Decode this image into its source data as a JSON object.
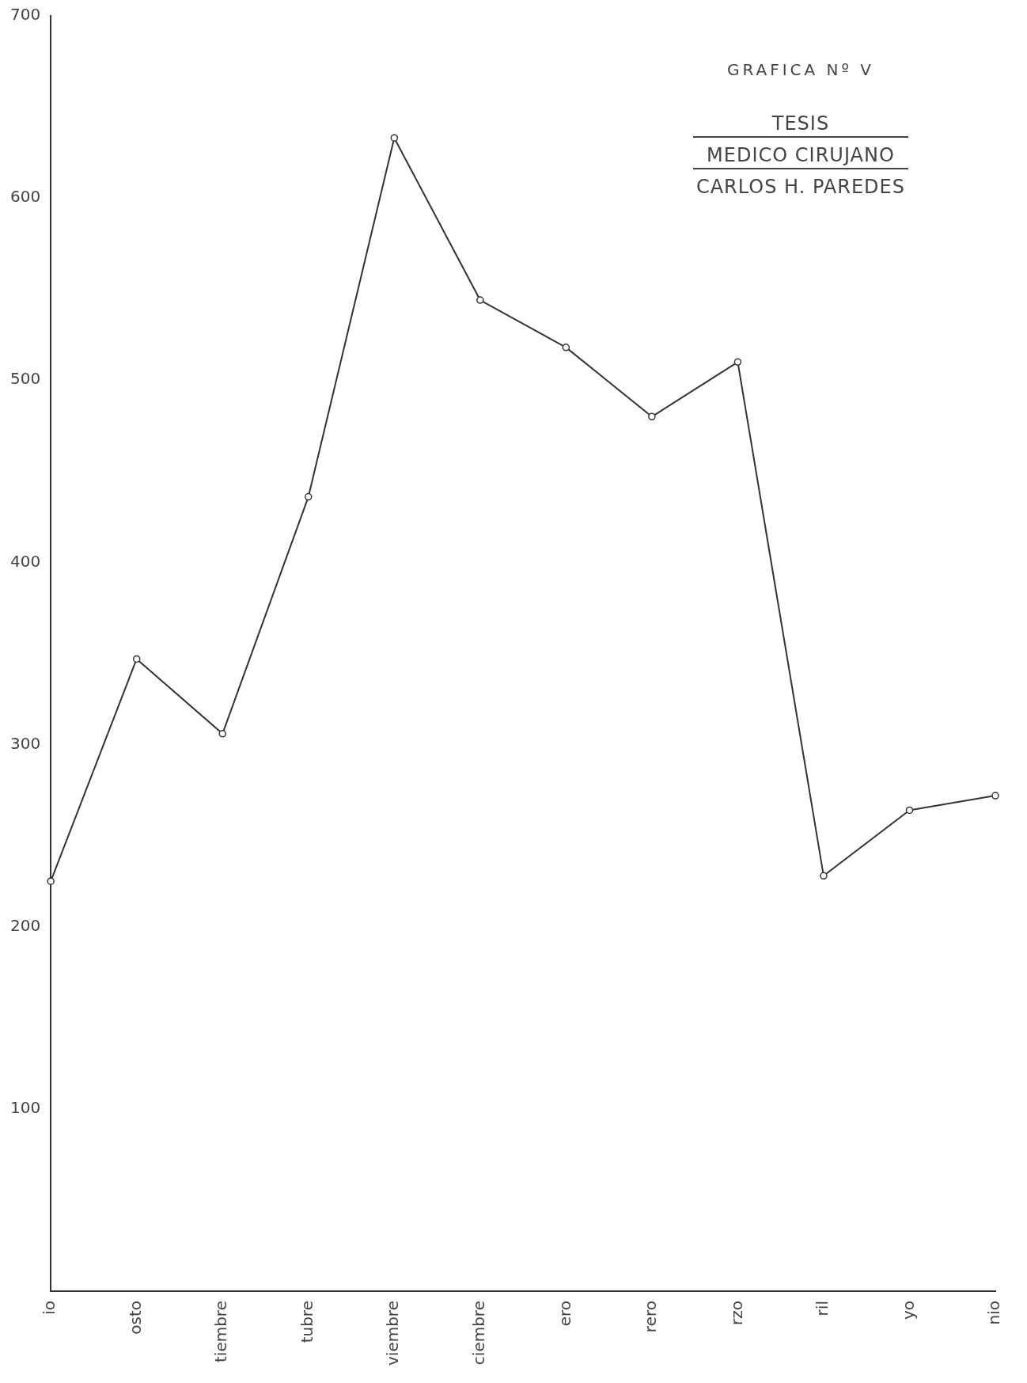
{
  "chart_data": {
    "type": "line",
    "title": "GRAFICA Nº V",
    "annotations": [
      "TESIS",
      "MEDICO CIRUJANO",
      "CARLOS H. PAREDES"
    ],
    "categories": [
      "io",
      "osto",
      "tiembre",
      "tubre",
      "viembre",
      "ciembre",
      "ero",
      "rero",
      "rzo",
      "ril",
      "yo",
      "nio"
    ],
    "series": [
      {
        "color": "#333333",
        "values": [
          225,
          347,
          306,
          436,
          633,
          544,
          518,
          480,
          510,
          228,
          264,
          272
        ]
      }
    ],
    "ylim": [
      0,
      700
    ],
    "yticks": [
      100,
      200,
      300,
      400,
      500,
      600,
      700
    ],
    "grid": false,
    "legend": false,
    "marker": "circle",
    "line_style": "solid"
  }
}
